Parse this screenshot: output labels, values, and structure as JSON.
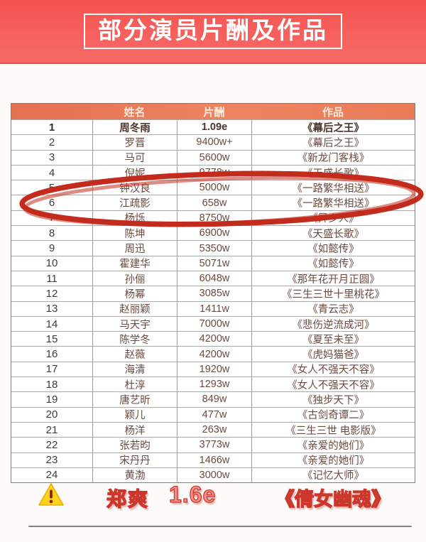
{
  "banner": {
    "title": "部分演员片酬及作品"
  },
  "table": {
    "columns": {
      "rank": "",
      "name": "姓名",
      "pay": "片酬",
      "work": "作品"
    },
    "rows": [
      {
        "rank": "1",
        "name": "周冬雨",
        "pay": "1.09e",
        "work": "《幕后之王》",
        "bold": true
      },
      {
        "rank": "2",
        "name": "罗晋",
        "pay": "9400w+",
        "work": "《幕后之王》"
      },
      {
        "rank": "3",
        "name": "马可",
        "pay": "5600w",
        "work": "《新龙门客栈》"
      },
      {
        "rank": "4",
        "name": "倪妮",
        "pay": "9778w",
        "work": "《天盛长歌》"
      },
      {
        "rank": "5",
        "name": "钟汉良",
        "pay": "5000w",
        "work": "《一路繁华相送》"
      },
      {
        "rank": "6",
        "name": "江疏影",
        "pay": "658w",
        "work": "《一路繁华相送》"
      },
      {
        "rank": "7",
        "name": "杨烁",
        "pay": "8750w",
        "work": "《异乡人》"
      },
      {
        "rank": "8",
        "name": "陈坤",
        "pay": "6900w",
        "work": "《天盛长歌》"
      },
      {
        "rank": "9",
        "name": "周迅",
        "pay": "5350w",
        "work": "《如懿传》"
      },
      {
        "rank": "10",
        "name": "霍建华",
        "pay": "5071w",
        "work": "《如懿传》"
      },
      {
        "rank": "11",
        "name": "孙俪",
        "pay": "6048w",
        "work": "《那年花开月正圆》"
      },
      {
        "rank": "12",
        "name": "杨幂",
        "pay": "3085w",
        "work": "《三生三世十里桃花》"
      },
      {
        "rank": "13",
        "name": "赵丽颖",
        "pay": "1411w",
        "work": "《青云志》"
      },
      {
        "rank": "14",
        "name": "马天宇",
        "pay": "7000w",
        "work": "《悲伤逆流成河》"
      },
      {
        "rank": "15",
        "name": "陈学冬",
        "pay": "4200w",
        "work": "《夏至未至》"
      },
      {
        "rank": "16",
        "name": "赵薇",
        "pay": "4200w",
        "work": "《虎妈猫爸》"
      },
      {
        "rank": "17",
        "name": "海清",
        "pay": "1920w",
        "work": "《女人不强天不容》"
      },
      {
        "rank": "18",
        "name": "杜淳",
        "pay": "1293w",
        "work": "《女人不强天不容》"
      },
      {
        "rank": "19",
        "name": "唐艺昕",
        "pay": "849w",
        "work": "《独步天下》"
      },
      {
        "rank": "20",
        "name": "颖儿",
        "pay": "477w",
        "work": "《古剑奇谭二》"
      },
      {
        "rank": "21",
        "name": "杨洋",
        "pay": "263w",
        "work": "《三生三世 电影版》"
      },
      {
        "rank": "22",
        "name": "张若昀",
        "pay": "3773w",
        "work": "《亲爱的她们》"
      },
      {
        "rank": "23",
        "name": "宋丹丹",
        "pay": "1466w",
        "work": "《亲爱的她们》"
      },
      {
        "rank": "24",
        "name": "黄渤",
        "pay": "3000w",
        "work": "《记忆大师》"
      }
    ]
  },
  "annotation_circle": {
    "highlighted_rows": "5-6",
    "color": "#c32b1d"
  },
  "footer": {
    "warning_icon": "warning-triangle",
    "name": "郑爽",
    "pay": "1.6e",
    "work": "《倩女幽魂》",
    "text_color": "#f6908a"
  },
  "colors": {
    "banner_bg": "#f6605d",
    "header_bg": "#ec7e58",
    "cell_text": "#6b4b41",
    "circle": "#c32b1d",
    "footer_text": "#f6908a"
  }
}
